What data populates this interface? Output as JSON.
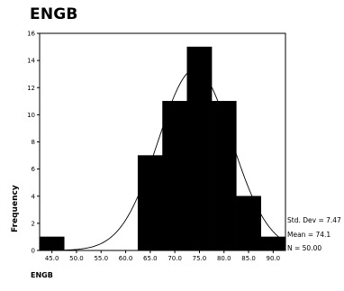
{
  "chart_data": {
    "type": "bar",
    "title": "ENGB",
    "xlabel": "ENGB",
    "ylabel": "Frequency",
    "x_ticks": [
      "45.0",
      "50.0",
      "55.0",
      "60.0",
      "65.0",
      "70.0",
      "75.0",
      "80.0",
      "85.0",
      "90.0"
    ],
    "y_ticks": [
      0,
      2,
      4,
      6,
      8,
      10,
      12,
      14,
      16
    ],
    "ylim": [
      0,
      16
    ],
    "xlim": [
      42.5,
      92.5
    ],
    "bins": [
      {
        "center": 45.0,
        "count": 1
      },
      {
        "center": 65.0,
        "count": 7
      },
      {
        "center": 70.0,
        "count": 11
      },
      {
        "center": 75.0,
        "count": 15
      },
      {
        "center": 80.0,
        "count": 11
      },
      {
        "center": 85.0,
        "count": 4
      },
      {
        "center": 90.0,
        "count": 1
      }
    ],
    "bin_width": 5.0,
    "normal_curve": {
      "mean": 74.1,
      "sd": 7.47,
      "n": 50
    },
    "stats": {
      "std_dev": "Std. Dev = 7.47",
      "mean": "Mean = 74.1",
      "n": "N = 50.00"
    },
    "colors": {
      "bar": "#000000",
      "curve": "#000000"
    }
  }
}
